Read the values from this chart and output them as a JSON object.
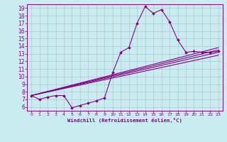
{
  "xlabel": "Windchill (Refroidissement éolien,°C)",
  "background_color": "#c8ecf0",
  "grid_color": "#b0c8d0",
  "line_color": "#880088",
  "xlim": [
    -0.5,
    23.5
  ],
  "ylim": [
    5.5,
    19.5
  ],
  "xticks": [
    0,
    1,
    2,
    3,
    4,
    5,
    6,
    7,
    8,
    9,
    10,
    11,
    12,
    13,
    14,
    15,
    16,
    17,
    18,
    19,
    20,
    21,
    22,
    23
  ],
  "yticks": [
    6,
    7,
    8,
    9,
    10,
    11,
    12,
    13,
    14,
    15,
    16,
    17,
    18,
    19
  ],
  "main_x": [
    0,
    1,
    2,
    3,
    4,
    5,
    6,
    7,
    8,
    9,
    10,
    11,
    12,
    13,
    14,
    15,
    16,
    17,
    18,
    19,
    20,
    21,
    22,
    23
  ],
  "main_y": [
    7.5,
    7.0,
    7.3,
    7.5,
    7.5,
    5.9,
    6.2,
    6.5,
    6.8,
    7.2,
    10.5,
    13.2,
    13.8,
    17.0,
    19.2,
    18.3,
    18.8,
    17.2,
    14.8,
    13.2,
    13.3,
    13.2,
    13.2,
    13.3
  ],
  "straight_lines": [
    {
      "x": [
        0,
        23
      ],
      "y": [
        7.5,
        13.8
      ]
    },
    {
      "x": [
        0,
        23
      ],
      "y": [
        7.5,
        13.5
      ]
    },
    {
      "x": [
        0,
        23
      ],
      "y": [
        7.5,
        13.2
      ]
    },
    {
      "x": [
        0,
        23
      ],
      "y": [
        7.5,
        12.8
      ]
    }
  ]
}
